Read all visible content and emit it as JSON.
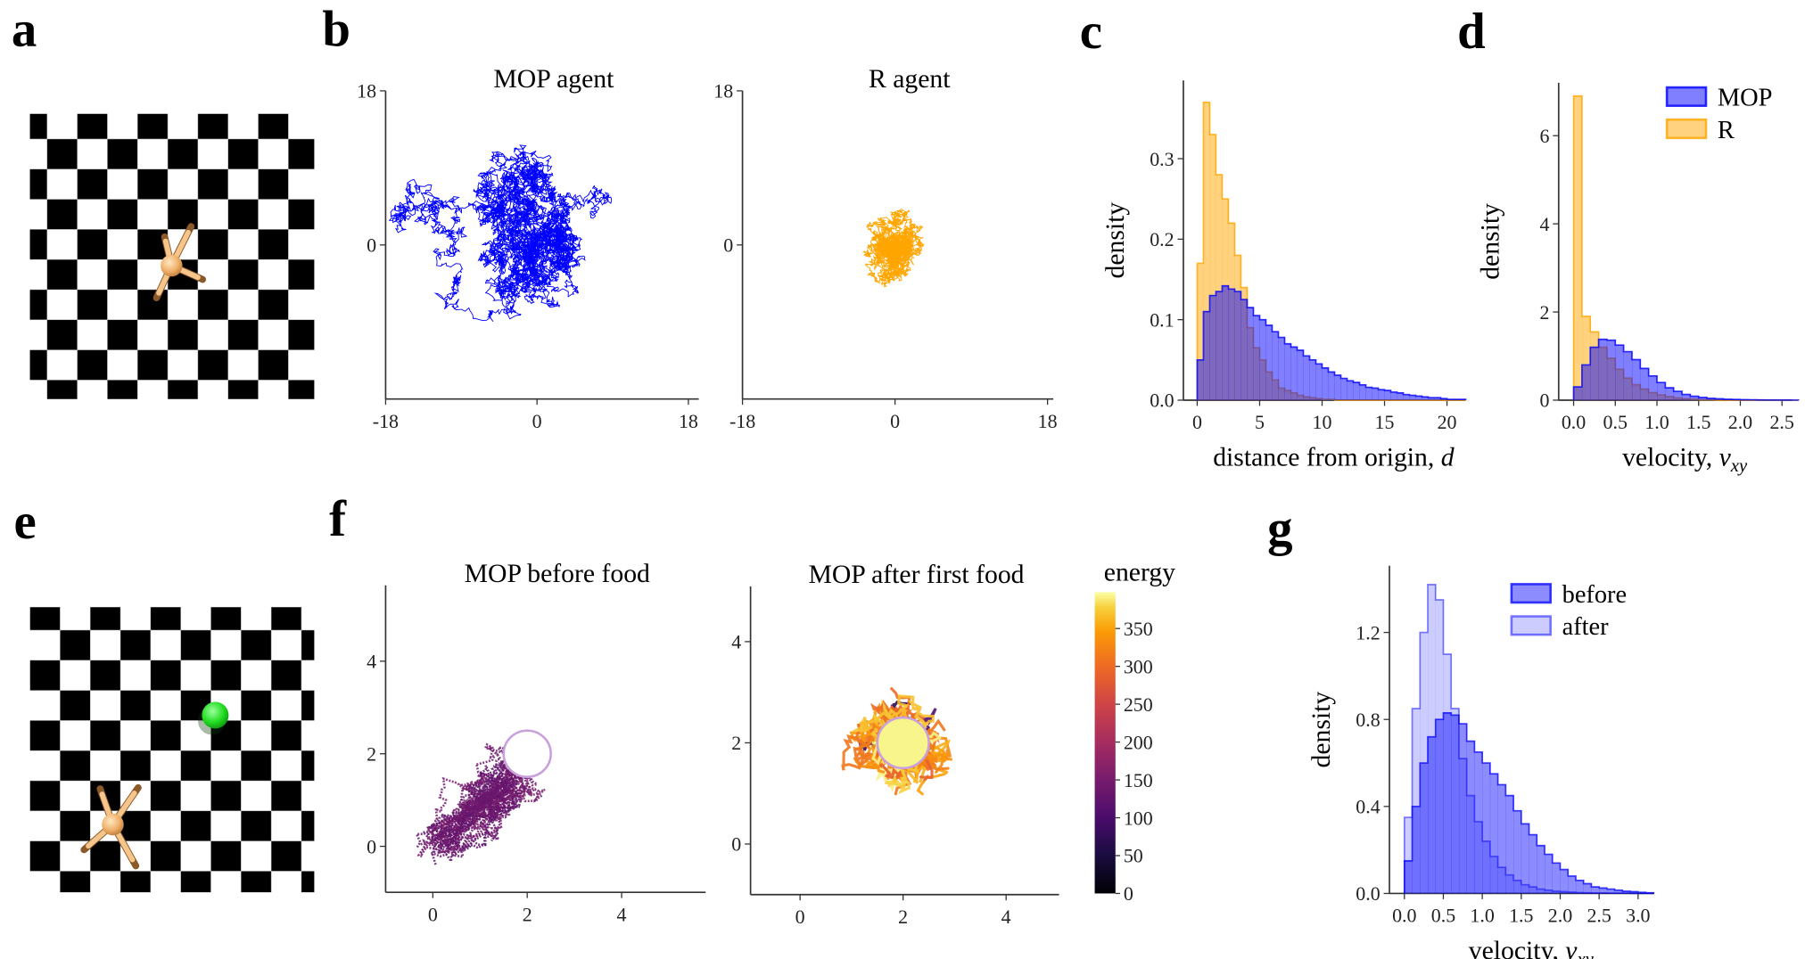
{
  "panel_labels": {
    "a": "a",
    "b": "b",
    "c": "c",
    "d": "d",
    "e": "e",
    "f": "f",
    "g": "g"
  },
  "colors": {
    "mop_trajectory": "#0000ff",
    "r_trajectory": "#ffa500",
    "mop_hist": "#0000ff",
    "r_hist": "#ffa500",
    "food": "#22dd22",
    "agent": "#f2b878",
    "food_circle_stroke": "#c9a0dc"
  },
  "chart_data": [
    {
      "id": "b1",
      "type": "line",
      "title": "MOP agent",
      "xlim": [
        -18,
        18
      ],
      "ylim": [
        -18,
        18
      ],
      "xticks": [
        -18,
        0,
        18
      ],
      "yticks": [
        0,
        18
      ],
      "xtick_labels": [
        "-18",
        "0",
        "18"
      ],
      "ytick_labels": [
        "0",
        "18"
      ],
      "color": "#0000ff",
      "series": "random-walk trajectory"
    },
    {
      "id": "b2",
      "type": "line",
      "title": "R agent",
      "xlim": [
        -18,
        18
      ],
      "ylim": [
        -18,
        18
      ],
      "xticks": [
        -18,
        0,
        18
      ],
      "yticks": [
        0,
        18
      ],
      "xtick_labels": [
        "-18",
        "0",
        "18"
      ],
      "ytick_labels": [
        "0",
        "18"
      ],
      "color": "#ffa500",
      "series": "random-walk trajectory"
    },
    {
      "id": "c",
      "type": "bar",
      "subtype": "histogram",
      "xlabel": "distance from origin, ",
      "xlabel_var": "d",
      "ylabel": "density",
      "xlim": [
        0,
        21.5
      ],
      "ylim": [
        0,
        0.38
      ],
      "xticks": [
        0,
        5,
        10,
        15,
        20
      ],
      "xtick_labels": [
        "0",
        "5",
        "10",
        "15",
        "20"
      ],
      "yticks": [
        0,
        0.1,
        0.2,
        0.3
      ],
      "ytick_labels": [
        "0.0",
        "0.1",
        "0.2",
        "0.3"
      ],
      "bin_width": 0.5,
      "series": [
        {
          "name": "R",
          "color": "#ffa500",
          "values": [
            0.17,
            0.37,
            0.33,
            0.28,
            0.25,
            0.22,
            0.18,
            0.14,
            0.09,
            0.065,
            0.05,
            0.035,
            0.025,
            0.015,
            0.012,
            0.009,
            0.006,
            0.004,
            0.003,
            0.002,
            0.001,
            0.001,
            0,
            0,
            0,
            0,
            0,
            0,
            0,
            0,
            0,
            0,
            0,
            0,
            0,
            0,
            0,
            0,
            0,
            0,
            0,
            0,
            0
          ]
        },
        {
          "name": "MOP",
          "color": "#0000ff",
          "values": [
            0.05,
            0.11,
            0.13,
            0.135,
            0.142,
            0.138,
            0.135,
            0.125,
            0.115,
            0.105,
            0.1,
            0.093,
            0.085,
            0.078,
            0.07,
            0.066,
            0.062,
            0.055,
            0.05,
            0.045,
            0.04,
            0.035,
            0.031,
            0.027,
            0.024,
            0.022,
            0.019,
            0.016,
            0.015,
            0.013,
            0.012,
            0.01,
            0.009,
            0.007,
            0.006,
            0.005,
            0.004,
            0.003,
            0.003,
            0.002,
            0.001,
            0.001,
            0.001
          ]
        }
      ]
    },
    {
      "id": "d",
      "type": "bar",
      "subtype": "histogram",
      "xlabel": "velocity, ",
      "xlabel_var": "v",
      "xlabel_sub": "xy",
      "ylabel": "density",
      "xlim": [
        0,
        2.7
      ],
      "ylim": [
        0,
        7
      ],
      "xticks": [
        0,
        0.5,
        1,
        1.5,
        2,
        2.5
      ],
      "xtick_labels": [
        "0.0",
        "0.5",
        "1.0",
        "1.5",
        "2.0",
        "2.5"
      ],
      "yticks": [
        0,
        2,
        4,
        6
      ],
      "ytick_labels": [
        "0",
        "2",
        "4",
        "6"
      ],
      "bin_width": 0.1,
      "legend": {
        "placement": "top-right",
        "entries": [
          "MOP",
          "R"
        ]
      },
      "series": [
        {
          "name": "R",
          "color": "#ffa500",
          "values": [
            6.9,
            1.9,
            1.55,
            1.2,
            0.95,
            0.7,
            0.5,
            0.35,
            0.25,
            0.17,
            0.12,
            0.08,
            0.05,
            0.03,
            0.02,
            0.01,
            0.01,
            0,
            0,
            0,
            0,
            0,
            0,
            0,
            0,
            0,
            0
          ]
        },
        {
          "name": "MOP",
          "color": "#0000ff",
          "values": [
            0.3,
            0.8,
            1.2,
            1.38,
            1.36,
            1.25,
            1.1,
            0.92,
            0.72,
            0.55,
            0.4,
            0.28,
            0.2,
            0.13,
            0.09,
            0.06,
            0.04,
            0.03,
            0.02,
            0.015,
            0.01,
            0.008,
            0.005,
            0.004,
            0.003,
            0.002,
            0.001
          ]
        }
      ]
    },
    {
      "id": "f1",
      "type": "scatter",
      "title": "MOP before food",
      "xlim": [
        -1,
        5.5
      ],
      "ylim": [
        -1,
        5.5
      ],
      "xticks": [
        0,
        2,
        4
      ],
      "yticks": [
        0,
        2,
        4
      ],
      "xtick_labels": [
        "0",
        "2",
        "4"
      ],
      "ytick_labels": [
        "0",
        "2",
        "4"
      ],
      "food_center": [
        2,
        2
      ],
      "colormap": "inferno"
    },
    {
      "id": "f2",
      "type": "scatter",
      "title": "MOP after first food",
      "xlim": [
        -1,
        5.2
      ],
      "ylim": [
        -1,
        5
      ],
      "xticks": [
        0,
        2,
        4
      ],
      "yticks": [
        0,
        2,
        4
      ],
      "xtick_labels": [
        "0",
        "2",
        "4"
      ],
      "ytick_labels": [
        "0",
        "2",
        "4"
      ],
      "food_center": [
        2,
        2
      ],
      "colormap": "inferno"
    },
    {
      "id": "cbar",
      "type": "heatmap",
      "subtype": "colorbar",
      "label": "energy",
      "range": [
        0,
        398
      ],
      "ticks": [
        0,
        50,
        100,
        150,
        200,
        250,
        300,
        350
      ],
      "tick_labels": [
        "0",
        "50",
        "100",
        "150",
        "200",
        "250",
        "300",
        "350"
      ],
      "colormap": "inferno"
    },
    {
      "id": "g",
      "type": "bar",
      "subtype": "histogram",
      "xlabel": "velocity, ",
      "xlabel_var": "v",
      "xlabel_sub": "xy",
      "ylabel": "density",
      "xlim": [
        0,
        3.2
      ],
      "ylim": [
        0,
        1.5
      ],
      "xticks": [
        0,
        0.5,
        1,
        1.5,
        2,
        2.5,
        3
      ],
      "xtick_labels": [
        "0.0",
        "0.5",
        "1.0",
        "1.5",
        "2.0",
        "2.5",
        "3.0"
      ],
      "yticks": [
        0,
        0.4,
        0.8,
        1.2
      ],
      "ytick_labels": [
        "0.0",
        "0.4",
        "0.8",
        "1.2"
      ],
      "bin_width": 0.1,
      "legend": {
        "placement": "top-right",
        "entries": [
          "before",
          "after"
        ]
      },
      "series": [
        {
          "name": "after",
          "color": "#0000ff",
          "opacity": 0.2,
          "values": [
            0.35,
            0.85,
            1.2,
            1.42,
            1.35,
            1.1,
            0.85,
            0.62,
            0.45,
            0.33,
            0.24,
            0.17,
            0.12,
            0.085,
            0.06,
            0.04,
            0.03,
            0.02,
            0.015,
            0.01,
            0.008,
            0.006,
            0.004,
            0.003,
            0.002,
            0.002,
            0.001,
            0.001,
            0.001,
            0,
            0,
            0
          ]
        },
        {
          "name": "before",
          "color": "#0000ff",
          "opacity": 0.45,
          "values": [
            0.15,
            0.4,
            0.6,
            0.72,
            0.8,
            0.83,
            0.82,
            0.78,
            0.7,
            0.65,
            0.6,
            0.55,
            0.5,
            0.45,
            0.38,
            0.32,
            0.27,
            0.22,
            0.18,
            0.14,
            0.11,
            0.08,
            0.06,
            0.045,
            0.03,
            0.025,
            0.02,
            0.015,
            0.01,
            0.008,
            0.005,
            0.003
          ]
        }
      ]
    }
  ]
}
